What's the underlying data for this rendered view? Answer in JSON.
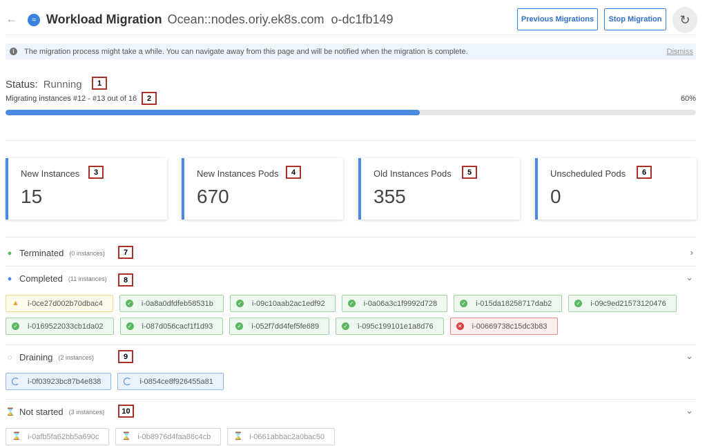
{
  "header": {
    "title": "Workload Migration",
    "cluster": "Ocean::nodes.oriy.ek8s.com",
    "id": "o-dc1fb149",
    "previous_label": "Previous Migrations",
    "stop_label": "Stop Migration"
  },
  "banner": {
    "text": "The migration process might take a while. You can navigate away from this page and will be notified when the migration is complete.",
    "dismiss": "Dismiss"
  },
  "status": {
    "label": "Status:",
    "value": "Running",
    "progress_text": "Migrating instances #12 - #13 out of 16",
    "percent_label": "60%",
    "percent": 60,
    "accent": "#4a8ae6"
  },
  "cards": [
    {
      "title": "New Instances",
      "value": "15"
    },
    {
      "title": "New Instances Pods",
      "value": "670"
    },
    {
      "title": "Old Instances Pods",
      "value": "355"
    },
    {
      "title": "Unscheduled Pods",
      "value": "0"
    }
  ],
  "sections": {
    "terminated": {
      "title": "Terminated",
      "count": "(0 instances)"
    },
    "completed": {
      "title": "Completed",
      "count": "(11 instances)",
      "row1": [
        [
          "warn",
          "i-0ce27d002b70dbac4"
        ],
        [
          "ok",
          "i-0a8a0dfdfeb58531b"
        ],
        [
          "ok",
          "i-09c10aab2ac1edf92"
        ],
        [
          "ok",
          "i-0a06a3c1f9992d728"
        ],
        [
          "ok",
          "i-015da18258717dab2"
        ],
        [
          "ok",
          "i-09c9ed21573120476"
        ]
      ],
      "row2": [
        [
          "ok",
          "i-0169522033cb1da02"
        ],
        [
          "ok",
          "i-087d056cacf1f1d93"
        ],
        [
          "ok",
          "i-052f7dd4fef5fe689"
        ],
        [
          "ok",
          "i-095c199101e1a8d76"
        ],
        [
          "err",
          "i-00669738c15dc3b83"
        ]
      ]
    },
    "draining": {
      "title": "Draining",
      "count": "(2 instances)",
      "items": [
        "i-0f03923bc87b4e838",
        "i-0854ce8f926455a81"
      ]
    },
    "not_started": {
      "title": "Not started",
      "count": "(3 instances)",
      "items": [
        "i-0afb5fa62bb5a690c",
        "i-0b8976d4faa86c4cb",
        "i-0661abbac2a0bac50"
      ]
    }
  },
  "annotations": [
    "1",
    "2",
    "3",
    "4",
    "5",
    "6",
    "7",
    "8",
    "9",
    "10"
  ]
}
